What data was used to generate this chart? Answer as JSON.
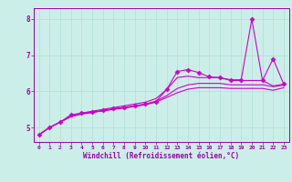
{
  "xlabel": "Windchill (Refroidissement éolien,°C)",
  "bg_color": "#cceee8",
  "line_color": "#cc00cc",
  "grid_color": "#aaddcc",
  "axis_color": "#9900aa",
  "tick_color": "#9900aa",
  "xlim": [
    -0.5,
    23.5
  ],
  "ylim": [
    4.6,
    8.3
  ],
  "yticks": [
    5,
    6,
    7,
    8
  ],
  "xticks": [
    0,
    1,
    2,
    3,
    4,
    5,
    6,
    7,
    8,
    9,
    10,
    11,
    12,
    13,
    14,
    15,
    16,
    17,
    18,
    19,
    20,
    21,
    22,
    23
  ],
  "series": [
    [
      4.8,
      5.0,
      5.15,
      5.35,
      5.4,
      5.43,
      5.47,
      5.52,
      5.56,
      5.6,
      5.65,
      5.72,
      6.05,
      6.55,
      6.6,
      6.52,
      6.4,
      6.38,
      6.32,
      6.32,
      8.0,
      6.3,
      6.9,
      6.2
    ],
    [
      4.8,
      5.0,
      5.15,
      5.32,
      5.4,
      5.45,
      5.5,
      5.55,
      5.6,
      5.65,
      5.7,
      5.8,
      6.05,
      6.38,
      6.42,
      6.38,
      6.38,
      6.38,
      6.3,
      6.3,
      6.3,
      6.3,
      6.15,
      6.2
    ],
    [
      4.8,
      5.0,
      5.15,
      5.3,
      5.38,
      5.42,
      5.47,
      5.51,
      5.55,
      5.59,
      5.64,
      5.73,
      5.88,
      6.08,
      6.18,
      6.22,
      6.22,
      6.22,
      6.18,
      6.18,
      6.18,
      6.18,
      6.13,
      6.17
    ],
    [
      4.8,
      5.0,
      5.15,
      5.3,
      5.37,
      5.41,
      5.46,
      5.5,
      5.54,
      5.58,
      5.63,
      5.7,
      5.83,
      5.96,
      6.06,
      6.1,
      6.1,
      6.1,
      6.08,
      6.08,
      6.08,
      6.08,
      6.03,
      6.1
    ]
  ],
  "marker": "D",
  "markersize": 2.5,
  "linewidth": 0.8
}
